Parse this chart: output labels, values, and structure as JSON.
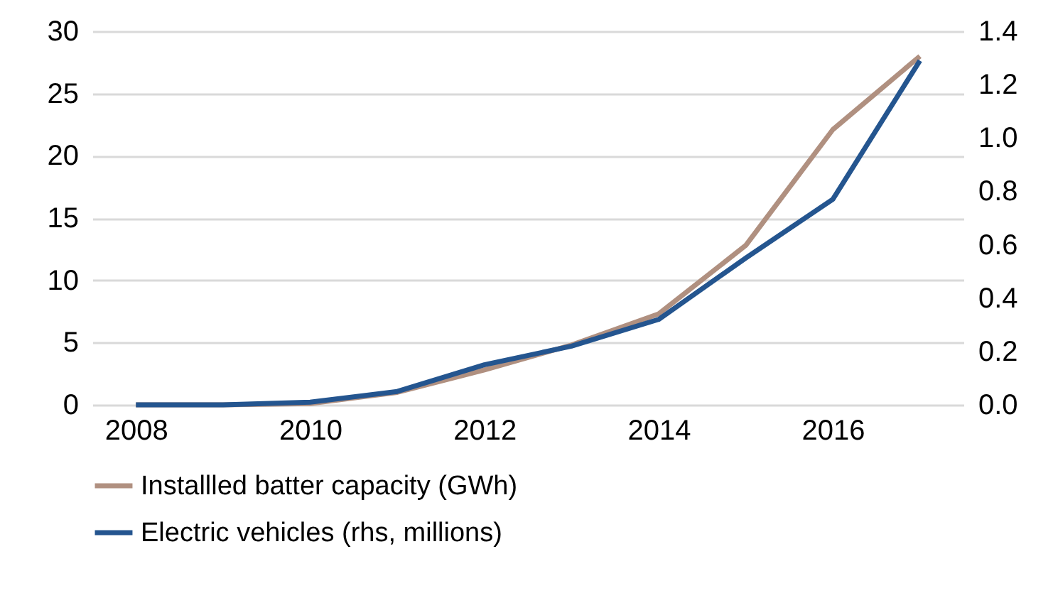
{
  "chart_data": {
    "type": "line",
    "categories": [
      "2008",
      null,
      "2010",
      null,
      "2012",
      null,
      "2014",
      null,
      "2016",
      null
    ],
    "series": [
      {
        "name": "Installled batter capacity (GWh)",
        "color": "#b09080",
        "values": [
          0,
          0,
          0.1,
          1.0,
          2.8,
          4.8,
          7.3,
          12.8,
          22.1,
          28.0
        ]
      },
      {
        "name": "Electric vehicles (rhs, millions)",
        "color": "#24558f",
        "axis": "y2",
        "values": [
          0,
          0,
          0.01,
          0.05,
          0.15,
          0.22,
          0.32,
          0.55,
          0.77,
          1.29
        ]
      }
    ],
    "ylim": [
      0,
      30
    ],
    "yticks": [
      0,
      5,
      10,
      15,
      20,
      25,
      30
    ],
    "y2lim": [
      0,
      1.4
    ],
    "y2ticks": [
      {
        "value": 0,
        "label": "0.0"
      },
      {
        "value": 0.2,
        "label": "0.2"
      },
      {
        "value": 0.4,
        "label": "0.4"
      },
      {
        "value": 0.6,
        "label": "0.6"
      },
      {
        "value": 0.8,
        "label": "0.8"
      },
      {
        "value": 1.0,
        "label": "1.0"
      },
      {
        "value": 1.2,
        "label": "1.2"
      },
      {
        "value": 1.4,
        "label": "1.4"
      }
    ],
    "grid": "y",
    "legend": "bottom",
    "marker": "none",
    "line_style": "solid"
  }
}
